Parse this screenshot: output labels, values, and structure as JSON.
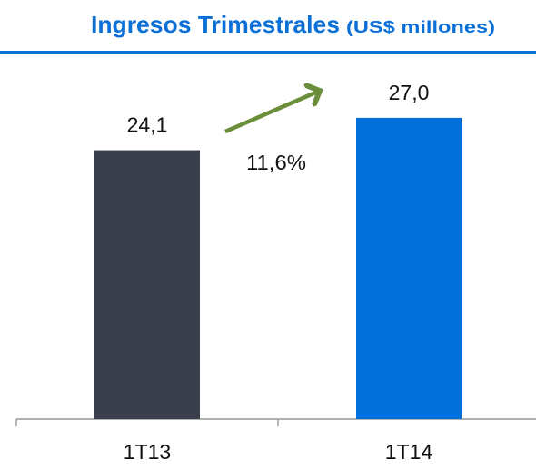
{
  "chart_data": {
    "type": "bar",
    "title": "Ingresos Trimestrales",
    "subtitle": "(US$ millones)",
    "categories": [
      "1T13",
      "1T14"
    ],
    "values": [
      24.1,
      27.0
    ],
    "value_labels": [
      "24,1",
      "27,0"
    ],
    "colors": [
      "#3a3f4b",
      "#0070d8"
    ],
    "ylim": [
      0,
      30
    ],
    "annotations": [
      "11,6%"
    ]
  }
}
